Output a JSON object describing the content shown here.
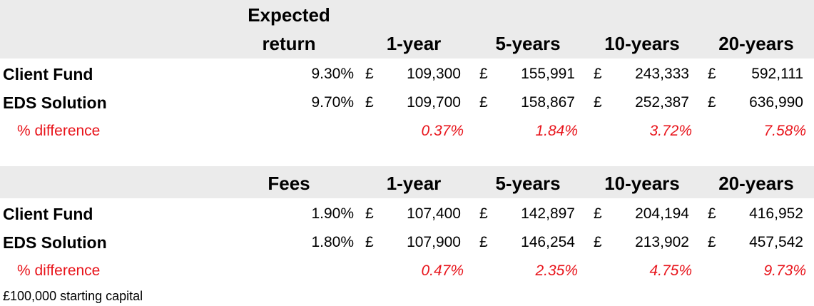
{
  "tables": [
    {
      "header": [
        "Expected return",
        "1-year",
        "5-years",
        "10-years",
        "20-years"
      ],
      "rows": [
        {
          "label": "Client Fund",
          "rate": "9.30%",
          "cells": [
            {
              "currency": "£",
              "value": "109,300"
            },
            {
              "currency": "£",
              "value": "155,991"
            },
            {
              "currency": "£",
              "value": "243,333"
            },
            {
              "currency": "£",
              "value": "592,111"
            }
          ]
        },
        {
          "label": "EDS Solution",
          "rate": "9.70%",
          "cells": [
            {
              "currency": "£",
              "value": "109,700"
            },
            {
              "currency": "£",
              "value": "158,867"
            },
            {
              "currency": "£",
              "value": "252,387"
            },
            {
              "currency": "£",
              "value": "636,990"
            }
          ]
        }
      ],
      "difference": {
        "label": "% difference",
        "values": [
          "0.37%",
          "1.84%",
          "3.72%",
          "7.58%"
        ]
      }
    },
    {
      "header": [
        "Fees",
        "1-year",
        "5-years",
        "10-years",
        "20-years"
      ],
      "rows": [
        {
          "label": "Client Fund",
          "rate": "1.90%",
          "cells": [
            {
              "currency": "£",
              "value": "107,400"
            },
            {
              "currency": "£",
              "value": "142,897"
            },
            {
              "currency": "£",
              "value": "204,194"
            },
            {
              "currency": "£",
              "value": "416,952"
            }
          ]
        },
        {
          "label": "EDS Solution",
          "rate": "1.80%",
          "cells": [
            {
              "currency": "£",
              "value": "107,900"
            },
            {
              "currency": "£",
              "value": "146,254"
            },
            {
              "currency": "£",
              "value": "213,902"
            },
            {
              "currency": "£",
              "value": "457,542"
            }
          ]
        }
      ],
      "difference": {
        "label": "% difference",
        "values": [
          "0.47%",
          "2.35%",
          "4.75%",
          "9.73%"
        ]
      }
    }
  ],
  "footnote": "£100,000 starting capital"
}
